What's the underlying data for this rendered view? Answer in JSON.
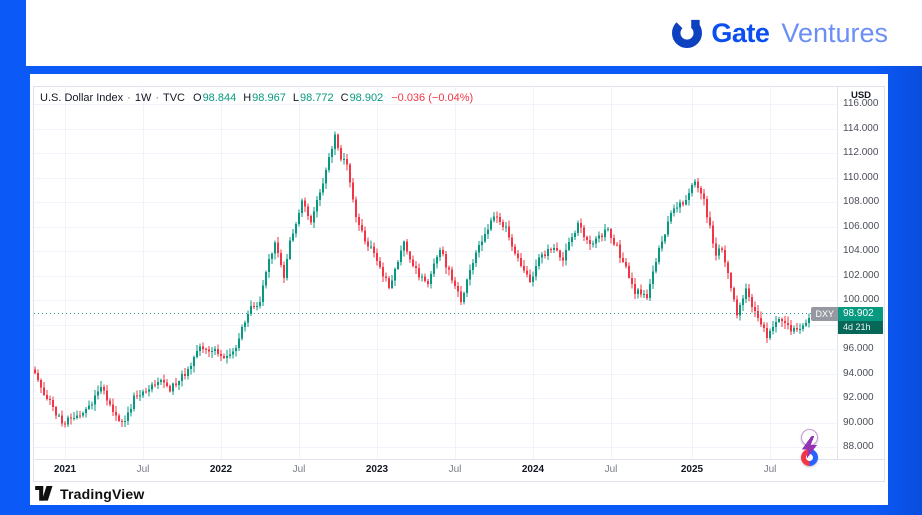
{
  "brand": {
    "name": "Gate",
    "suffix": "Ventures",
    "icon": "gate-ring-logo",
    "colors": {
      "icon": "#0d41c0",
      "name": "#0b4ff0",
      "suffix": "#6b8ff5",
      "background": "#0b59f6"
    }
  },
  "legend": {
    "symbol": "U.S. Dollar Index",
    "separator": "·",
    "interval": "1W",
    "exchange": "TVC",
    "ohlc": [
      {
        "label": "O",
        "value": "98.844"
      },
      {
        "label": "H",
        "value": "98.967"
      },
      {
        "label": "L",
        "value": "98.772"
      },
      {
        "label": "C",
        "value": "98.902"
      }
    ],
    "change": "−0.036 (−0.04%)",
    "value_color": "#089981",
    "change_color": "#f23645"
  },
  "price_axis": {
    "currency": "USD"
  },
  "price_tag": {
    "symbol": "DXY",
    "price": "98.902",
    "countdown": "4d 21h",
    "price_bg": "#089981",
    "symbol_bg": "#9598a1",
    "countdown_bg": "#07685a"
  },
  "footer": {
    "logo_text": "TradingView"
  },
  "icons": {
    "boost": "lightning-bolt",
    "sentiment": "red-blue-donut",
    "boost_color": "#9334b5",
    "sentiment_colors": [
      "#2962ff",
      "#f23645"
    ]
  },
  "chart_data": {
    "type": "candlestick",
    "title": "U.S. Dollar Index",
    "interval": "1W",
    "exchange": "TVC",
    "weeks_total": 260,
    "price_range": {
      "min": 86.95,
      "max": 117.4
    },
    "grid_step": 2,
    "grid": true,
    "y_ticks": [
      {
        "price": 116,
        "label": "116.000"
      },
      {
        "price": 114,
        "label": "114.000"
      },
      {
        "price": 112,
        "label": "112.000"
      },
      {
        "price": 110,
        "label": "110.000"
      },
      {
        "price": 108,
        "label": "108.000"
      },
      {
        "price": 106,
        "label": "106.000"
      },
      {
        "price": 104,
        "label": "104.000"
      },
      {
        "price": 102,
        "label": "102.000"
      },
      {
        "price": 100,
        "label": "100.000"
      },
      {
        "price": 96,
        "label": "96.000"
      },
      {
        "price": 94,
        "label": "94.000"
      },
      {
        "price": 92,
        "label": "92.000"
      },
      {
        "price": 90,
        "label": "90.000"
      },
      {
        "price": 88,
        "label": "88.000"
      }
    ],
    "x_ticks": [
      {
        "week": 10,
        "label": "2021",
        "major": true
      },
      {
        "week": 36,
        "label": "Jul",
        "major": false
      },
      {
        "week": 62,
        "label": "2022",
        "major": true
      },
      {
        "week": 88,
        "label": "Jul",
        "major": false
      },
      {
        "week": 114,
        "label": "2023",
        "major": true
      },
      {
        "week": 140,
        "label": "Jul",
        "major": false
      },
      {
        "week": 166,
        "label": "2024",
        "major": true
      },
      {
        "week": 192,
        "label": "Jul",
        "major": false
      },
      {
        "week": 219,
        "label": "2025",
        "major": true
      },
      {
        "week": 245,
        "label": "Jul",
        "major": false
      }
    ],
    "last_candle": {
      "open": 98.844,
      "high": 98.967,
      "low": 98.772,
      "close": 98.902
    },
    "change": {
      "abs": -0.036,
      "pct": "-0.04%"
    },
    "last_price_line": 98.902,
    "colors": {
      "up": "#089981",
      "down": "#f23645",
      "grid": "#f0f3fa"
    },
    "anchors_week_close": [
      [
        0,
        94.0
      ],
      [
        2,
        92.8
      ],
      [
        5,
        91.7
      ],
      [
        9,
        89.9
      ],
      [
        12,
        90.3
      ],
      [
        17,
        90.9
      ],
      [
        22,
        92.9
      ],
      [
        26,
        90.9
      ],
      [
        30,
        89.9
      ],
      [
        33,
        92.1
      ],
      [
        36,
        92.3
      ],
      [
        42,
        93.4
      ],
      [
        45,
        92.7
      ],
      [
        50,
        94.1
      ],
      [
        55,
        96.1
      ],
      [
        61,
        95.8
      ],
      [
        63,
        95.3
      ],
      [
        67,
        96.1
      ],
      [
        71,
        99.1
      ],
      [
        75,
        99.8
      ],
      [
        78,
        103.1
      ],
      [
        80,
        104.6
      ],
      [
        83,
        101.9
      ],
      [
        85,
        104.6
      ],
      [
        89,
        108.0
      ],
      [
        92,
        106.2
      ],
      [
        96,
        109.6
      ],
      [
        100,
        113.5
      ],
      [
        101,
        112.2
      ],
      [
        104,
        110.8
      ],
      [
        107,
        106.9
      ],
      [
        110,
        104.9
      ],
      [
        113,
        103.9
      ],
      [
        116,
        102.0
      ],
      [
        118,
        101.2
      ],
      [
        123,
        104.6
      ],
      [
        126,
        102.6
      ],
      [
        131,
        101.2
      ],
      [
        135,
        104.2
      ],
      [
        138,
        102.3
      ],
      [
        142,
        99.9
      ],
      [
        147,
        104.0
      ],
      [
        153,
        106.7
      ],
      [
        157,
        105.9
      ],
      [
        161,
        103.4
      ],
      [
        165,
        101.4
      ],
      [
        168,
        103.2
      ],
      [
        172,
        104.2
      ],
      [
        176,
        103.4
      ],
      [
        181,
        106.1
      ],
      [
        185,
        104.5
      ],
      [
        191,
        105.8
      ],
      [
        194,
        104.3
      ],
      [
        200,
        100.7
      ],
      [
        204,
        100.4
      ],
      [
        208,
        104.1
      ],
      [
        213,
        107.5
      ],
      [
        216,
        107.9
      ],
      [
        220,
        109.6
      ],
      [
        223,
        108.0
      ],
      [
        227,
        103.8
      ],
      [
        229,
        104.1
      ],
      [
        234,
        98.9
      ],
      [
        237,
        101.0
      ],
      [
        240,
        99.0
      ],
      [
        244,
        97.0
      ],
      [
        248,
        98.7
      ],
      [
        250,
        97.9
      ],
      [
        253,
        97.6
      ],
      [
        256,
        97.7
      ],
      [
        259,
        98.902
      ]
    ]
  }
}
